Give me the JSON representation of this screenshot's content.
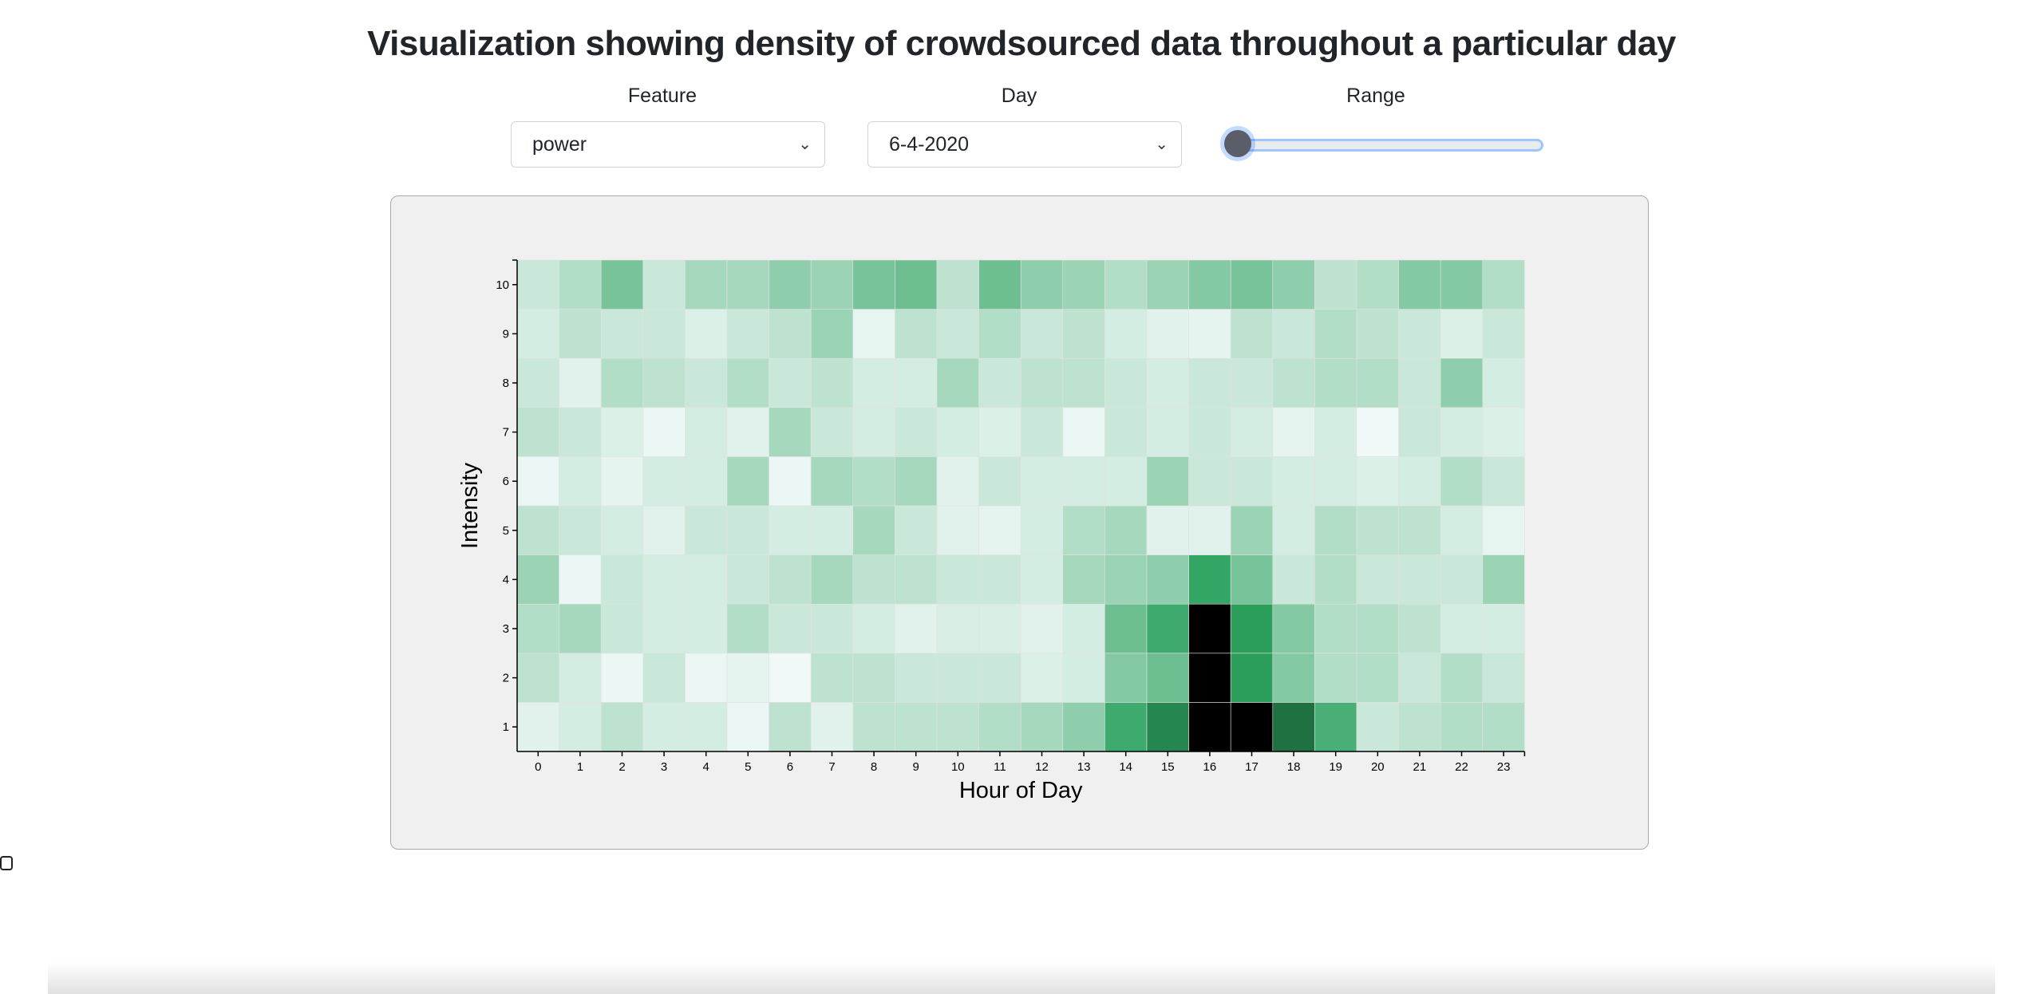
{
  "page": {
    "title": "Visualization showing density of crowdsourced data throughout a particular day"
  },
  "controls": {
    "feature": {
      "label": "Feature",
      "value": "power"
    },
    "day": {
      "label": "Day",
      "value": "6-4-2020"
    },
    "range": {
      "label": "Range",
      "value": 0
    }
  },
  "colors": {
    "panel_bg": "#f0f0f0",
    "scale_low": "#f7fcfd",
    "scale_mid": "#2ca25f",
    "scale_high": "#000000"
  },
  "chart_data": {
    "type": "heatmap",
    "title": "",
    "xlabel": "Hour of Day",
    "ylabel": "Intensity",
    "x": [
      "0",
      "1",
      "2",
      "3",
      "4",
      "5",
      "6",
      "7",
      "8",
      "9",
      "10",
      "11",
      "12",
      "13",
      "14",
      "15",
      "16",
      "17",
      "18",
      "19",
      "20",
      "21",
      "22",
      "23"
    ],
    "y": [
      "1",
      "2",
      "3",
      "4",
      "5",
      "6",
      "7",
      "8",
      "9",
      "10"
    ],
    "color_scale": "sequential green, light = low density, black = highest density",
    "values": [
      [
        0.1,
        0.15,
        0.25,
        0.15,
        0.15,
        0.05,
        0.25,
        0.1,
        0.25,
        0.25,
        0.25,
        0.3,
        0.35,
        0.45,
        0.8,
        1.0,
        1.6,
        1.6,
        1.1,
        0.75,
        0.2,
        0.25,
        0.3,
        0.3
      ],
      [
        0.25,
        0.15,
        0.05,
        0.2,
        0.05,
        0.08,
        0.03,
        0.25,
        0.25,
        0.2,
        0.2,
        0.2,
        0.12,
        0.15,
        0.5,
        0.6,
        1.6,
        0.9,
        0.5,
        0.3,
        0.3,
        0.2,
        0.3,
        0.2
      ],
      [
        0.3,
        0.35,
        0.2,
        0.15,
        0.15,
        0.3,
        0.2,
        0.2,
        0.15,
        0.1,
        0.13,
        0.13,
        0.1,
        0.15,
        0.6,
        0.8,
        1.6,
        0.9,
        0.5,
        0.3,
        0.3,
        0.25,
        0.15,
        0.15
      ],
      [
        0.4,
        0.05,
        0.2,
        0.15,
        0.15,
        0.2,
        0.25,
        0.35,
        0.25,
        0.25,
        0.2,
        0.2,
        0.15,
        0.35,
        0.4,
        0.45,
        0.85,
        0.55,
        0.2,
        0.3,
        0.2,
        0.2,
        0.2,
        0.4
      ],
      [
        0.25,
        0.2,
        0.15,
        0.1,
        0.2,
        0.2,
        0.15,
        0.15,
        0.35,
        0.2,
        0.1,
        0.08,
        0.15,
        0.3,
        0.35,
        0.1,
        0.1,
        0.4,
        0.15,
        0.3,
        0.25,
        0.25,
        0.15,
        0.07
      ],
      [
        0.05,
        0.15,
        0.08,
        0.15,
        0.15,
        0.35,
        0.05,
        0.35,
        0.3,
        0.35,
        0.1,
        0.2,
        0.15,
        0.15,
        0.15,
        0.4,
        0.2,
        0.2,
        0.15,
        0.15,
        0.12,
        0.15,
        0.3,
        0.2
      ],
      [
        0.25,
        0.2,
        0.12,
        0.05,
        0.15,
        0.1,
        0.35,
        0.2,
        0.15,
        0.2,
        0.15,
        0.12,
        0.2,
        0.05,
        0.2,
        0.15,
        0.2,
        0.15,
        0.08,
        0.15,
        0.03,
        0.2,
        0.15,
        0.12
      ],
      [
        0.2,
        0.1,
        0.3,
        0.25,
        0.2,
        0.3,
        0.2,
        0.25,
        0.15,
        0.15,
        0.35,
        0.2,
        0.25,
        0.25,
        0.2,
        0.15,
        0.2,
        0.2,
        0.25,
        0.3,
        0.3,
        0.2,
        0.45,
        0.15
      ],
      [
        0.15,
        0.25,
        0.2,
        0.2,
        0.12,
        0.2,
        0.25,
        0.4,
        0.07,
        0.25,
        0.2,
        0.3,
        0.2,
        0.25,
        0.15,
        0.1,
        0.08,
        0.25,
        0.2,
        0.3,
        0.25,
        0.2,
        0.12,
        0.2
      ],
      [
        0.2,
        0.3,
        0.55,
        0.2,
        0.35,
        0.35,
        0.45,
        0.4,
        0.55,
        0.6,
        0.25,
        0.6,
        0.45,
        0.4,
        0.3,
        0.4,
        0.5,
        0.55,
        0.45,
        0.25,
        0.3,
        0.5,
        0.5,
        0.3
      ]
    ],
    "value_max": 1.6,
    "grid": false,
    "legend": "none"
  }
}
